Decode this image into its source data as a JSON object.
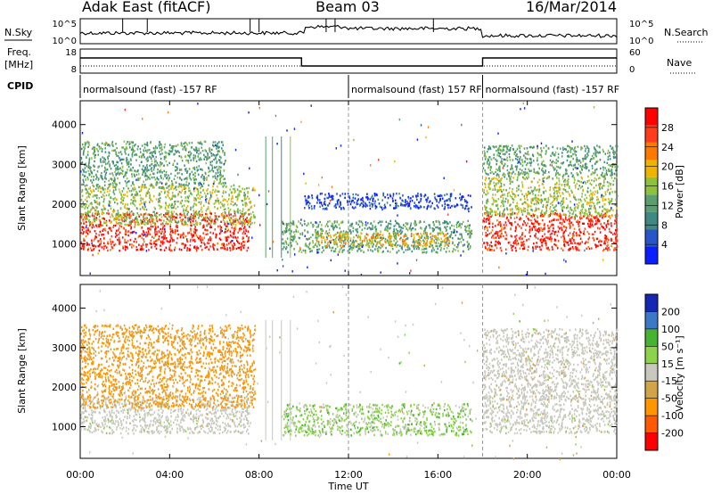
{
  "header": {
    "station": "Adak East (fitACF)",
    "beam": "Beam 03",
    "date": "16/Mar/2014"
  },
  "panels": {
    "nsky_label": "N.Sky",
    "nsearch_label": "N.Search",
    "freq_label_1": "Freq.",
    "freq_label_2": "[MHz]",
    "nave_label": "Nave",
    "cpid_label": "CPID",
    "nsky_ticks": [
      "10^5",
      "10^0"
    ],
    "nsearch_ticks": [
      "10^5",
      "10^0"
    ],
    "freq_ticks": [
      "18",
      "8"
    ],
    "nave_ticks": [
      "60",
      "0"
    ]
  },
  "cpid_segments": [
    {
      "label": "normalsound (fast) -157 RF",
      "start_hour": 0
    },
    {
      "label": "normalsound (fast) 157 RF",
      "start_hour": 12
    },
    {
      "label": "normalsound (fast) -157 RF",
      "start_hour": 18
    }
  ],
  "colors": {
    "power": [
      "#0a1eff",
      "#2855c8",
      "#3e8a82",
      "#5aa06e",
      "#8cc23c",
      "#f0b400",
      "#ff7800",
      "#ff3c1e",
      "#ff0000"
    ],
    "velocity": [
      "#ff0000",
      "#ff5a00",
      "#ff9600",
      "#d2a44a",
      "#c8c8be",
      "#8cd24a",
      "#46b432",
      "#3c78c8",
      "#1428b4"
    ],
    "ground_scatter": "#c8c8be"
  },
  "chart_data": [
    {
      "type": "heatmap",
      "name": "power",
      "xlabel": "",
      "ylabel": "Slant Range [km]",
      "xlim": [
        0,
        24
      ],
      "ylim": [
        200,
        4600
      ],
      "yticks": [
        "1000",
        "2000",
        "3000",
        "4000"
      ],
      "colorbar_label": "Power [dB]",
      "colorbar_ticks": [
        "28",
        "24",
        "20",
        "16",
        "12",
        "8",
        "4"
      ],
      "colorbar_range": [
        0,
        32
      ],
      "regions": [
        {
          "x0": 0,
          "x1": 7.6,
          "y0": 850,
          "y1": 1800,
          "level": 28
        },
        {
          "x0": 0,
          "x1": 7.8,
          "y0": 1500,
          "y1": 2500,
          "level": 16
        },
        {
          "x0": 0,
          "x1": 6.5,
          "y0": 2500,
          "y1": 3600,
          "level": 12
        },
        {
          "x0": 9.0,
          "x1": 17.5,
          "y0": 800,
          "y1": 1600,
          "level": 12
        },
        {
          "x0": 10.5,
          "x1": 16.5,
          "y0": 950,
          "y1": 1300,
          "level": 20
        },
        {
          "x0": 10.0,
          "x1": 17.5,
          "y0": 1900,
          "y1": 2300,
          "level": 4
        },
        {
          "x0": 18.0,
          "x1": 24,
          "y0": 850,
          "y1": 1800,
          "level": 28
        },
        {
          "x0": 18.0,
          "x1": 24,
          "y0": 1700,
          "y1": 2700,
          "level": 16
        },
        {
          "x0": 18.0,
          "x1": 24,
          "y0": 2700,
          "y1": 3500,
          "level": 12
        }
      ]
    },
    {
      "type": "heatmap",
      "name": "velocity",
      "xlabel": "Time UT",
      "ylabel": "Slant Range [km]",
      "xlim": [
        0,
        24
      ],
      "ylim": [
        200,
        4600
      ],
      "xticks": [
        "00:00",
        "04:00",
        "08:00",
        "12:00",
        "16:00",
        "20:00",
        "00:00"
      ],
      "yticks": [
        "1000",
        "2000",
        "3000",
        "4000"
      ],
      "colorbar_label": "Velocity [m s⁻¹]",
      "colorbar_ticks": [
        "200",
        "100",
        "50",
        "15",
        "-15",
        "-50",
        "-100",
        "-200"
      ],
      "colorbar_range": [
        -250,
        250
      ],
      "regions": [
        {
          "x0": 0,
          "x1": 7.6,
          "y0": 850,
          "y1": 1800,
          "level": 0
        },
        {
          "x0": 0,
          "x1": 7.8,
          "y0": 1500,
          "y1": 3600,
          "level": -60
        },
        {
          "x0": 9.0,
          "x1": 17.5,
          "y0": 800,
          "y1": 1600,
          "level": 30
        },
        {
          "x0": 18.0,
          "x1": 24,
          "y0": 850,
          "y1": 1800,
          "level": 0
        },
        {
          "x0": 18.0,
          "x1": 24,
          "y0": 1700,
          "y1": 3500,
          "level": -10
        }
      ]
    }
  ]
}
